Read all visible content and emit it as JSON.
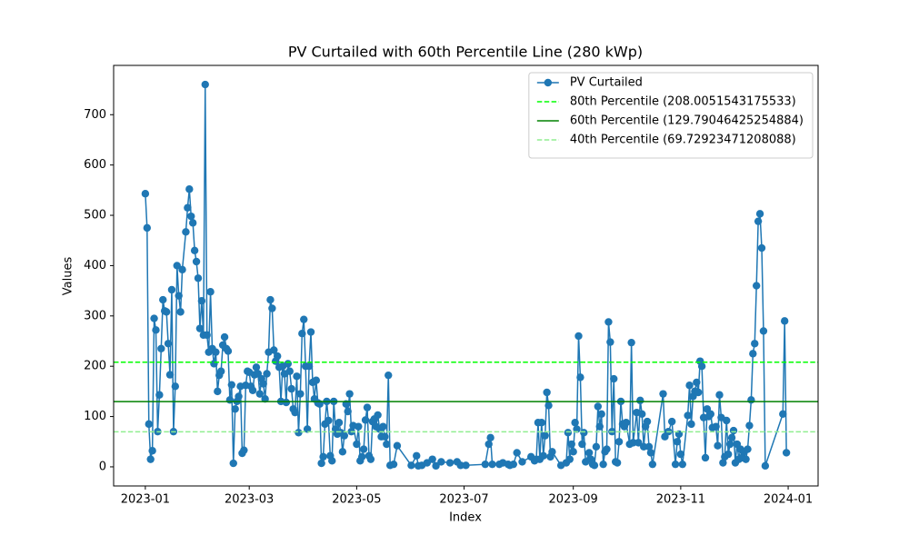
{
  "chart_data": {
    "type": "line",
    "title": "PV Curtailed with 60th Percentile Line (280 kWp)",
    "x_label": "Index",
    "y_label": "Values",
    "x": [
      "2023-01-01",
      "2023-01-02",
      "2023-01-03",
      "2023-01-04",
      "2023-01-05",
      "2023-01-06",
      "2023-01-07",
      "2023-01-08",
      "2023-01-09",
      "2023-01-10",
      "2023-01-11",
      "2023-01-12",
      "2023-01-13",
      "2023-01-14",
      "2023-01-15",
      "2023-01-16",
      "2023-01-17",
      "2023-01-18",
      "2023-01-19",
      "2023-01-20",
      "2023-01-21",
      "2023-01-22",
      "2023-01-24",
      "2023-01-25",
      "2023-01-26",
      "2023-01-27",
      "2023-01-28",
      "2023-01-29",
      "2023-01-30",
      "2023-01-31",
      "2023-02-01",
      "2023-02-02",
      "2023-02-03",
      "2023-02-04",
      "2023-02-05",
      "2023-02-06",
      "2023-02-07",
      "2023-02-08",
      "2023-02-09",
      "2023-02-10",
      "2023-02-11",
      "2023-02-12",
      "2023-02-13",
      "2023-02-14",
      "2023-02-15",
      "2023-02-16",
      "2023-02-17",
      "2023-02-18",
      "2023-02-19",
      "2023-02-20",
      "2023-02-21",
      "2023-02-22",
      "2023-02-23",
      "2023-02-24",
      "2023-02-25",
      "2023-02-26",
      "2023-02-27",
      "2023-02-28",
      "2023-03-01",
      "2023-03-02",
      "2023-03-03",
      "2023-03-04",
      "2023-03-05",
      "2023-03-06",
      "2023-03-07",
      "2023-03-08",
      "2023-03-09",
      "2023-03-10",
      "2023-03-11",
      "2023-03-12",
      "2023-03-13",
      "2023-03-14",
      "2023-03-15",
      "2023-03-16",
      "2023-03-17",
      "2023-03-18",
      "2023-03-19",
      "2023-03-20",
      "2023-03-21",
      "2023-03-22",
      "2023-03-23",
      "2023-03-24",
      "2023-03-25",
      "2023-03-26",
      "2023-03-27",
      "2023-03-28",
      "2023-03-29",
      "2023-03-30",
      "2023-03-31",
      "2023-04-01",
      "2023-04-02",
      "2023-04-03",
      "2023-04-04",
      "2023-04-05",
      "2023-04-06",
      "2023-04-07",
      "2023-04-08",
      "2023-04-09",
      "2023-04-10",
      "2023-04-11",
      "2023-04-12",
      "2023-04-13",
      "2023-04-14",
      "2023-04-15",
      "2023-04-16",
      "2023-04-17",
      "2023-04-18",
      "2023-04-19",
      "2023-04-20",
      "2023-04-21",
      "2023-04-22",
      "2023-04-23",
      "2023-04-24",
      "2023-04-25",
      "2023-04-26",
      "2023-04-27",
      "2023-04-28",
      "2023-04-29",
      "2023-05-01",
      "2023-05-02",
      "2023-05-03",
      "2023-05-04",
      "2023-05-05",
      "2023-05-06",
      "2023-05-07",
      "2023-05-08",
      "2023-05-09",
      "2023-05-10",
      "2023-05-11",
      "2023-05-12",
      "2023-05-13",
      "2023-05-14",
      "2023-05-15",
      "2023-05-16",
      "2023-05-17",
      "2023-05-18",
      "2023-05-19",
      "2023-05-20",
      "2023-05-22",
      "2023-05-24",
      "2023-06-01",
      "2023-06-04",
      "2023-06-05",
      "2023-06-07",
      "2023-06-10",
      "2023-06-13",
      "2023-06-15",
      "2023-06-18",
      "2023-06-23",
      "2023-06-27",
      "2023-06-29",
      "2023-07-02",
      "2023-07-13",
      "2023-07-15",
      "2023-07-16",
      "2023-07-17",
      "2023-07-21",
      "2023-07-23",
      "2023-07-26",
      "2023-07-27",
      "2023-07-29",
      "2023-07-31",
      "2023-08-03",
      "2023-08-08",
      "2023-08-10",
      "2023-08-11",
      "2023-08-12",
      "2023-08-13",
      "2023-08-14",
      "2023-08-15",
      "2023-08-16",
      "2023-08-17",
      "2023-08-18",
      "2023-08-19",
      "2023-08-20",
      "2023-08-25",
      "2023-08-28",
      "2023-08-29",
      "2023-08-30",
      "2023-08-31",
      "2023-09-01",
      "2023-09-02",
      "2023-09-03",
      "2023-09-04",
      "2023-09-05",
      "2023-09-06",
      "2023-09-07",
      "2023-09-08",
      "2023-09-10",
      "2023-09-11",
      "2023-09-12",
      "2023-09-13",
      "2023-09-14",
      "2023-09-15",
      "2023-09-16",
      "2023-09-17",
      "2023-09-18",
      "2023-09-19",
      "2023-09-20",
      "2023-09-21",
      "2023-09-22",
      "2023-09-23",
      "2023-09-24",
      "2023-09-25",
      "2023-09-26",
      "2023-09-27",
      "2023-09-28",
      "2023-09-29",
      "2023-09-30",
      "2023-10-01",
      "2023-10-03",
      "2023-10-04",
      "2023-10-05",
      "2023-10-07",
      "2023-10-08",
      "2023-10-09",
      "2023-10-10",
      "2023-10-11",
      "2023-10-12",
      "2023-10-13",
      "2023-10-14",
      "2023-10-15",
      "2023-10-16",
      "2023-10-22",
      "2023-10-23",
      "2023-10-25",
      "2023-10-27",
      "2023-10-29",
      "2023-10-30",
      "2023-10-31",
      "2023-11-01",
      "2023-11-02",
      "2023-11-05",
      "2023-11-06",
      "2023-11-07",
      "2023-11-08",
      "2023-11-09",
      "2023-11-10",
      "2023-11-11",
      "2023-11-12",
      "2023-11-13",
      "2023-11-14",
      "2023-11-15",
      "2023-11-16",
      "2023-11-17",
      "2023-11-18",
      "2023-11-19",
      "2023-11-21",
      "2023-11-22",
      "2023-11-23",
      "2023-11-24",
      "2023-11-25",
      "2023-11-26",
      "2023-11-27",
      "2023-11-28",
      "2023-11-29",
      "2023-11-30",
      "2023-12-01",
      "2023-12-02",
      "2023-12-03",
      "2023-12-04",
      "2023-12-05",
      "2023-12-06",
      "2023-12-07",
      "2023-12-08",
      "2023-12-09",
      "2023-12-10",
      "2023-12-11",
      "2023-12-12",
      "2023-12-13",
      "2023-12-14",
      "2023-12-15",
      "2023-12-16",
      "2023-12-17",
      "2023-12-18",
      "2023-12-19",
      "2023-12-29",
      "2023-12-30",
      "2023-12-31"
    ],
    "series": [
      {
        "name": "PV Curtailed",
        "color": "#1f77b4",
        "values": [
          543,
          475,
          85,
          15,
          32,
          295,
          272,
          70,
          143,
          235,
          332,
          310,
          308,
          245,
          183,
          352,
          70,
          160,
          400,
          340,
          308,
          392,
          467,
          515,
          552,
          498,
          485,
          430,
          408,
          375,
          275,
          330,
          262,
          760,
          262,
          228,
          348,
          235,
          205,
          228,
          150,
          182,
          190,
          242,
          258,
          235,
          230,
          133,
          163,
          7,
          115,
          130,
          140,
          160,
          27,
          33,
          162,
          190,
          188,
          160,
          152,
          183,
          198,
          185,
          145,
          175,
          165,
          135,
          185,
          228,
          332,
          315,
          232,
          210,
          220,
          198,
          130,
          200,
          185,
          128,
          205,
          190,
          155,
          115,
          108,
          180,
          68,
          145,
          265,
          293,
          200,
          75,
          200,
          268,
          168,
          135,
          172,
          127,
          125,
          7,
          20,
          85,
          130,
          92,
          22,
          12,
          130,
          75,
          65,
          88,
          68,
          30,
          62,
          125,
          110,
          145,
          70,
          82,
          45,
          80,
          12,
          20,
          35,
          93,
          118,
          22,
          15,
          90,
          95,
          80,
          103,
          75,
          60,
          80,
          60,
          45,
          182,
          3,
          5,
          42,
          3,
          22,
          2,
          3,
          8,
          15,
          2,
          10,
          8,
          10,
          3,
          3,
          5,
          45,
          58,
          5,
          5,
          8,
          5,
          3,
          5,
          28,
          10,
          20,
          12,
          15,
          88,
          15,
          88,
          22,
          62,
          148,
          122,
          20,
          30,
          3,
          8,
          68,
          15,
          45,
          30,
          88,
          75,
          260,
          178,
          45,
          68,
          10,
          28,
          15,
          5,
          3,
          40,
          120,
          80,
          105,
          5,
          30,
          35,
          288,
          248,
          70,
          175,
          10,
          8,
          50,
          130,
          85,
          80,
          88,
          45,
          247,
          48,
          108,
          48,
          132,
          105,
          40,
          80,
          90,
          40,
          28,
          5,
          145,
          60,
          70,
          90,
          5,
          50,
          65,
          25,
          5,
          102,
          162,
          85,
          140,
          150,
          168,
          148,
          210,
          200,
          98,
          18,
          115,
          100,
          105,
          78,
          80,
          42,
          143,
          98,
          8,
          20,
          92,
          25,
          45,
          58,
          72,
          8,
          45,
          15,
          35,
          18,
          30,
          15,
          35,
          82,
          133,
          225,
          245,
          360,
          488,
          503,
          435,
          270,
          2,
          105,
          290,
          28
        ]
      }
    ],
    "hlines": [
      {
        "name": "80th Percentile (208.0051543175533)",
        "value": 208.0051543175533,
        "color": "#00ff00",
        "dashed": true
      },
      {
        "name": "60th Percentile (129.79046425254884)",
        "value": 129.79046425254884,
        "color": "#008000",
        "dashed": false
      },
      {
        "name": "40th Percentile (69.72923471208088)",
        "value": 69.72923471208088,
        "color": "#90ee90",
        "dashed": true
      }
    ],
    "xlim": [
      "2022-12-14",
      "2024-01-18"
    ],
    "xticks": [
      {
        "value": "2023-01-01",
        "label": "2023-01"
      },
      {
        "value": "2023-03-01",
        "label": "2023-03"
      },
      {
        "value": "2023-05-01",
        "label": "2023-05"
      },
      {
        "value": "2023-07-01",
        "label": "2023-07"
      },
      {
        "value": "2023-09-01",
        "label": "2023-09"
      },
      {
        "value": "2023-11-01",
        "label": "2023-11"
      },
      {
        "value": "2024-01-01",
        "label": "2024-01"
      }
    ],
    "ylim": [
      -38,
      798
    ],
    "yticks": [
      0,
      100,
      200,
      300,
      400,
      500,
      600,
      700
    ],
    "grid": false,
    "legend": "upper right"
  }
}
